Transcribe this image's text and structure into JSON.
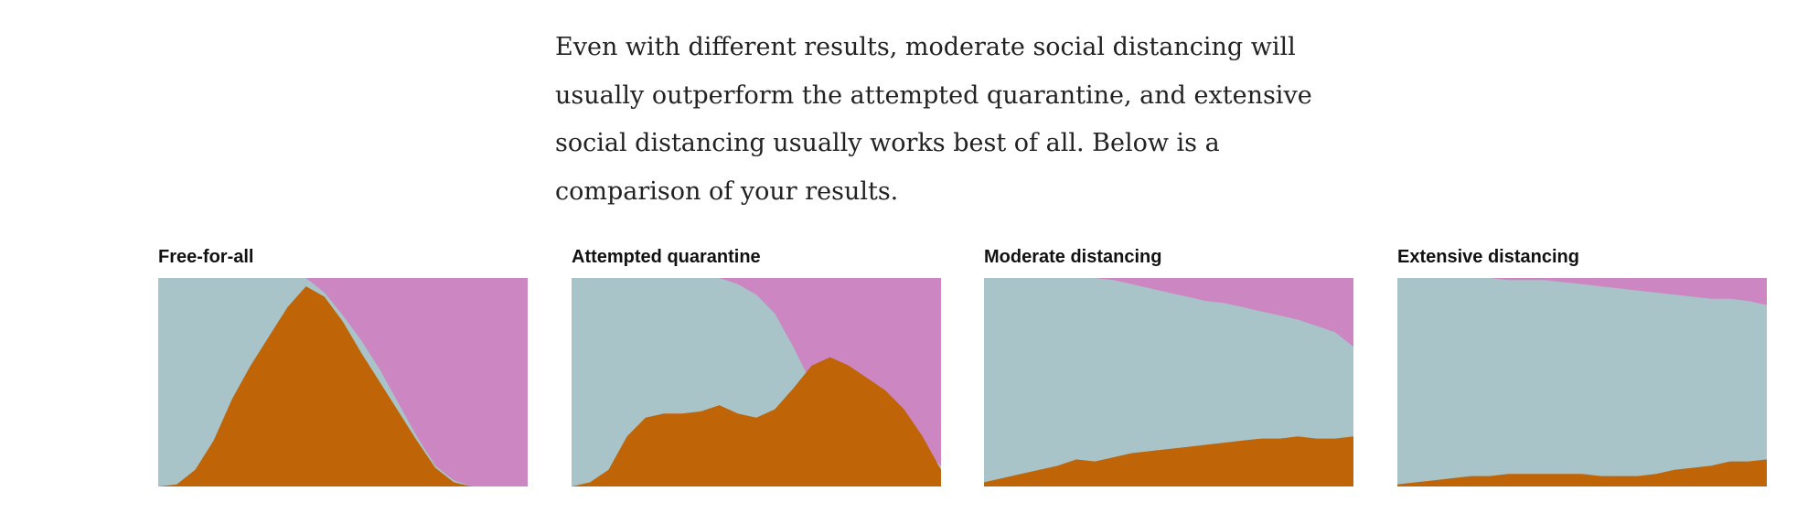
{
  "intro_text": "Even with different results, moderate social distancing will usually outperform the attempted quarantine, and extensive social distancing usually works best of all. Below is a comparison of your results.",
  "colors": {
    "healthy": "#a9c4c8",
    "sick": "#bf6508",
    "recovered": "#cc86c1"
  },
  "chart_data": [
    {
      "type": "area",
      "title": "Free-for-all",
      "stacking": "stacked-to-100%",
      "series_order": [
        "sick",
        "healthy",
        "recovered"
      ],
      "x": [
        0,
        5,
        10,
        15,
        20,
        25,
        30,
        35,
        40,
        45,
        50,
        55,
        60,
        65,
        70,
        75,
        80,
        85,
        90,
        95,
        100
      ],
      "sick": [
        0,
        1,
        8,
        22,
        42,
        58,
        72,
        86,
        96,
        91,
        79,
        64,
        50,
        36,
        22,
        9,
        2,
        0,
        0,
        0,
        0
      ],
      "recovered": [
        0,
        0,
        0,
        0,
        0,
        0,
        0,
        0,
        0,
        7,
        18,
        30,
        44,
        60,
        76,
        90,
        97,
        100,
        100,
        100,
        100
      ]
    },
    {
      "type": "area",
      "title": "Attempted quarantine",
      "stacking": "stacked-to-100%",
      "series_order": [
        "sick",
        "healthy",
        "recovered"
      ],
      "x": [
        0,
        5,
        10,
        15,
        20,
        25,
        30,
        35,
        40,
        45,
        50,
        55,
        60,
        65,
        70,
        75,
        80,
        85,
        90,
        95,
        100
      ],
      "sick": [
        0,
        2,
        8,
        24,
        33,
        35,
        35,
        36,
        39,
        35,
        33,
        37,
        47,
        58,
        62,
        58,
        52,
        46,
        37,
        24,
        8
      ],
      "recovered": [
        0,
        0,
        0,
        0,
        0,
        0,
        0,
        0,
        0,
        3,
        8,
        17,
        33,
        51,
        57,
        62,
        66,
        70,
        74,
        82,
        90
      ]
    },
    {
      "type": "area",
      "title": "Moderate distancing",
      "stacking": "stacked-to-100%",
      "series_order": [
        "sick",
        "healthy",
        "recovered"
      ],
      "x": [
        0,
        5,
        10,
        15,
        20,
        25,
        30,
        35,
        40,
        45,
        50,
        55,
        60,
        65,
        70,
        75,
        80,
        85,
        90,
        95,
        100
      ],
      "sick": [
        2,
        4,
        6,
        8,
        10,
        13,
        12,
        14,
        16,
        17,
        18,
        19,
        20,
        21,
        22,
        23,
        23,
        24,
        23,
        23,
        24
      ],
      "recovered": [
        0,
        0,
        0,
        0,
        0,
        0,
        0,
        1,
        3,
        5,
        7,
        9,
        11,
        12,
        14,
        16,
        18,
        20,
        23,
        26,
        33
      ]
    },
    {
      "type": "area",
      "title": "Extensive distancing",
      "stacking": "stacked-to-100%",
      "series_order": [
        "sick",
        "healthy",
        "recovered"
      ],
      "x": [
        0,
        5,
        10,
        15,
        20,
        25,
        30,
        35,
        40,
        45,
        50,
        55,
        60,
        65,
        70,
        75,
        80,
        85,
        90,
        95,
        100
      ],
      "sick": [
        1,
        2,
        3,
        4,
        5,
        5,
        6,
        6,
        6,
        6,
        6,
        5,
        5,
        5,
        6,
        8,
        9,
        10,
        12,
        12,
        13
      ],
      "recovered": [
        0,
        0,
        0,
        0,
        0,
        0,
        1,
        1,
        1,
        2,
        3,
        4,
        5,
        6,
        7,
        8,
        9,
        10,
        10,
        11,
        13
      ]
    }
  ]
}
